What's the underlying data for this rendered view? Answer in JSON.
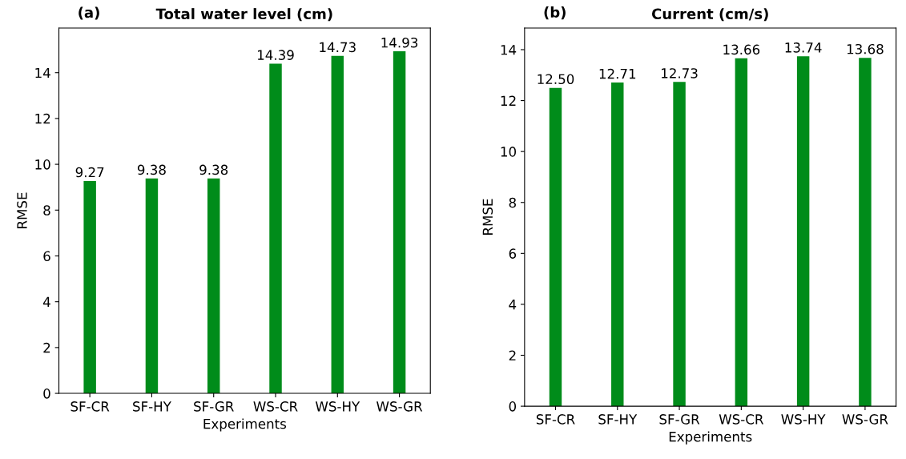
{
  "chart_data": [
    {
      "type": "bar",
      "title": "Total water level (cm)",
      "annotations": [
        "(a)"
      ],
      "xlabel": "Experiments",
      "ylabel": "RMSE",
      "categories": [
        "SF-CR",
        "SF-HY",
        "SF-GR",
        "WS-CR",
        "WS-HY",
        "WS-GR"
      ],
      "values": [
        9.27,
        9.38,
        9.38,
        14.39,
        14.73,
        14.93
      ],
      "color": "#008c1a",
      "ylim": [
        0,
        15.95
      ],
      "yticks": [
        0,
        2,
        4,
        6,
        8,
        10,
        12,
        14
      ],
      "data_labels": true,
      "grid": false,
      "legend": false
    },
    {
      "type": "bar",
      "title": "Current (cm/s)",
      "annotations": [
        "(b)"
      ],
      "xlabel": "Experiments",
      "ylabel": "RMSE",
      "categories": [
        "SF-CR",
        "SF-HY",
        "SF-GR",
        "WS-CR",
        "WS-HY",
        "WS-GR"
      ],
      "values": [
        12.5,
        12.71,
        12.73,
        13.66,
        13.74,
        13.68
      ],
      "color": "#008c1a",
      "value_labels": [
        "12.50",
        "12.71",
        "12.73",
        "13.66",
        "13.74",
        "13.68"
      ],
      "ylim": [
        0,
        14.85
      ],
      "yticks": [
        0,
        2,
        4,
        6,
        8,
        10,
        12,
        14
      ],
      "grid": false,
      "legend": false
    }
  ]
}
